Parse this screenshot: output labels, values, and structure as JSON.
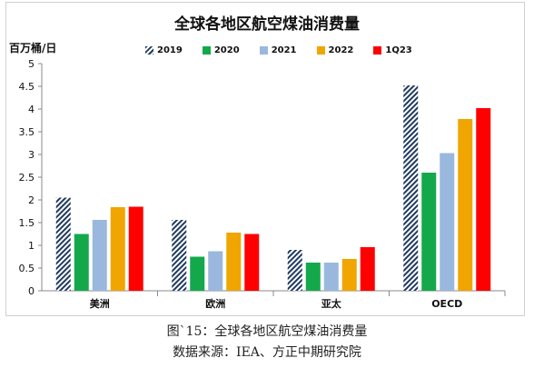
{
  "chart_data": {
    "type": "bar",
    "title": "全球各地区航空煤油消费量",
    "unit_label": "百万桶/日",
    "categories": [
      "美洲",
      "欧洲",
      "亚太",
      "OECD"
    ],
    "series": [
      {
        "name": "2019",
        "color": "#1f3a5f",
        "pattern": "diagonal-stripe",
        "values": [
          2.05,
          1.56,
          0.9,
          4.52
        ]
      },
      {
        "name": "2020",
        "color": "#13a94b",
        "values": [
          1.25,
          0.75,
          0.62,
          2.6
        ]
      },
      {
        "name": "2021",
        "color": "#9ab8de",
        "values": [
          1.56,
          0.87,
          0.62,
          3.03
        ]
      },
      {
        "name": "2022",
        "color": "#f0a500",
        "values": [
          1.84,
          1.28,
          0.7,
          3.78
        ]
      },
      {
        "name": "1Q23",
        "color": "#ff0000",
        "values": [
          1.85,
          1.25,
          0.96,
          4.02
        ]
      }
    ],
    "ylim": [
      0,
      5
    ],
    "yticks": [
      "0",
      "0.5",
      "1",
      "1.5",
      "2",
      "2.5",
      "3",
      "3.5",
      "4",
      "4.5",
      "5"
    ],
    "legend_position": "top"
  },
  "caption": {
    "line1": "图`15：全球各地区航空煤油消费量",
    "line2": "数据来源：IEA、方正中期研究院"
  }
}
